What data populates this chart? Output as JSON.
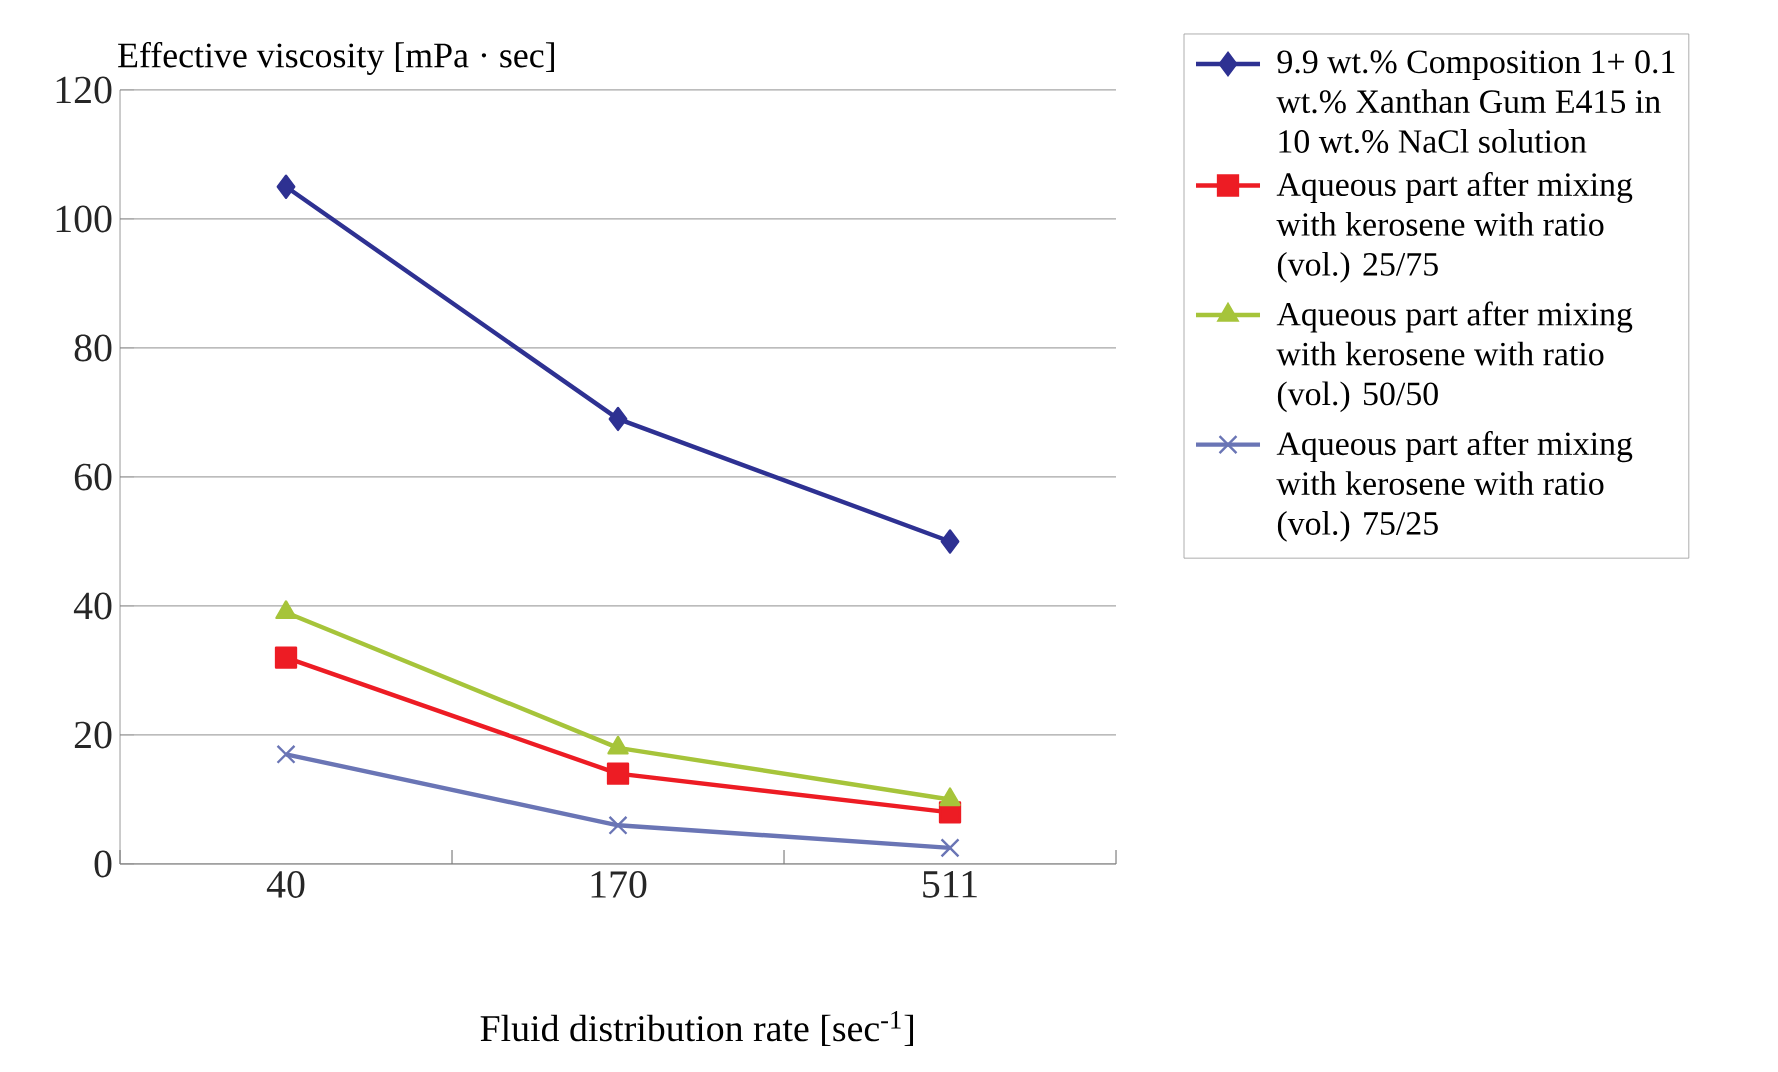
{
  "chart_data": {
    "type": "line",
    "ylabel": "Effective viscosity [mPa · sec]",
    "xlabel": "Fluid distribution rate [sec$^{-1}$]",
    "categories": [
      "40",
      "170",
      "511"
    ],
    "ylim": [
      0,
      120
    ],
    "yticks": [
      0,
      20,
      40,
      60,
      80,
      100,
      120
    ],
    "grid": "y",
    "legend": "right",
    "series": [
      {
        "name": "9.9 wt.% Composition 1+ 0.1 wt.% Xanthan Gum E415 in 10 wt.% NaCl solution",
        "color": "#2e3192",
        "marker": "diamond",
        "values": [
          105,
          69,
          50
        ]
      },
      {
        "name": "Aqueous part after mixing with kerosene with ratio (vol.) 25/75",
        "color": "#ed1c24",
        "marker": "square",
        "values": [
          32,
          14,
          8
        ]
      },
      {
        "name": "Aqueous part after mixing with kerosene with ratio (vol.) 50/50",
        "color": "#a6c43a",
        "marker": "triangle",
        "values": [
          39,
          18,
          10
        ]
      },
      {
        "name": "Aqueous part after mixing with kerosene with ratio (vol.) 75/25",
        "color": "#6a75b5",
        "marker": "cross",
        "values": [
          17,
          6,
          2.5
        ]
      }
    ]
  }
}
